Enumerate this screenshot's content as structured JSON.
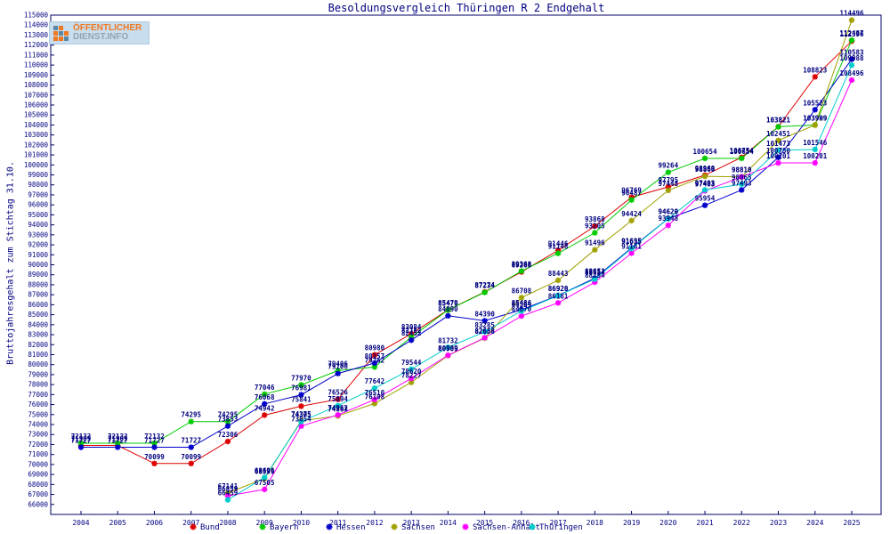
{
  "page": {
    "title": "Besoldungsvergleich Thüringen R 2 Endgehalt"
  },
  "logo": {
    "line1": "ÖFFENTLICHER",
    "line2": "DIENST.INFO"
  },
  "axes": {
    "ylabel": "Bruttojahresgehalt zum Stichtag 31.10.",
    "y_min_tick": 66000,
    "y_max_tick": 115000,
    "y_step": 1000,
    "tick_color": "#000080",
    "axis_color": "#000066",
    "label_color": "#000080"
  },
  "chart_data": {
    "type": "line",
    "title": "Besoldungsvergleich Thüringen R 2 Endgehalt",
    "xlabel": "",
    "ylabel": "Bruttojahresgehalt zum Stichtag 31.10.",
    "ylim": [
      65000,
      115000
    ],
    "grid": false,
    "legend_position": "bottom",
    "x": [
      2004,
      2005,
      2006,
      2007,
      2008,
      2009,
      2010,
      2011,
      2012,
      2013,
      2014,
      2015,
      2016,
      2017,
      2018,
      2019,
      2020,
      2021,
      2022,
      2023,
      2024,
      2025
    ],
    "series": [
      {
        "name": "Bund",
        "color": "#dd0000",
        "values": [
          71909,
          71909,
          70099,
          70099,
          72306,
          74942,
          75841,
          76526,
          80980,
          83084,
          85479,
          87274,
          89280,
          91446,
          93868,
          96769,
          97795,
          98969,
          100754,
          103821,
          108823,
          112396
        ]
      },
      {
        "name": "Bayern",
        "color": "#00cc00",
        "values": [
          72132,
          72132,
          72132,
          74295,
          74295,
          77046,
          77970,
          79406,
          79762,
          82752,
          85470,
          87234,
          89368,
          91148,
          93205,
          96487,
          99264,
          100654,
          100654,
          103821,
          103999,
          112487
        ]
      },
      {
        "name": "Hessen",
        "color": "#0000cc",
        "values": [
          71727,
          71727,
          71727,
          71727,
          73853,
          76068,
          76981,
          79106,
          80157,
          82452,
          84890,
          84390,
          85486,
          86928,
          88653,
          91695,
          94629,
          95954,
          97493,
          100750,
          105523,
          110583
        ]
      },
      {
        "name": "Sachsen",
        "color": "#a0a000",
        "values": [
          null,
          null,
          null,
          null,
          67141,
          68599,
          74375,
          74863,
          76108,
          78227,
          80909,
          82658,
          86708,
          88443,
          91496,
          94424,
          97448,
          98860,
          98810,
          102451,
          103989,
          114496
        ]
      },
      {
        "name": "Sachsen-Anhalt",
        "color": "#ff00ff",
        "values": [
          null,
          null,
          null,
          null,
          66859,
          67505,
          73854,
          74962,
          76510,
          78620,
          80939,
          82688,
          84870,
          86181,
          88254,
          91161,
          93948,
          97403,
          98810,
          100201,
          100201,
          108496
        ]
      },
      {
        "name": "Thüringen",
        "color": "#00cccc",
        "values": [
          null,
          null,
          null,
          null,
          66459,
          68696,
          74305,
          75894,
          77642,
          79544,
          81732,
          83285,
          85364,
          86920,
          88554,
          91635,
          94620,
          97493,
          98065,
          101473,
          101546,
          109988
        ]
      }
    ]
  }
}
